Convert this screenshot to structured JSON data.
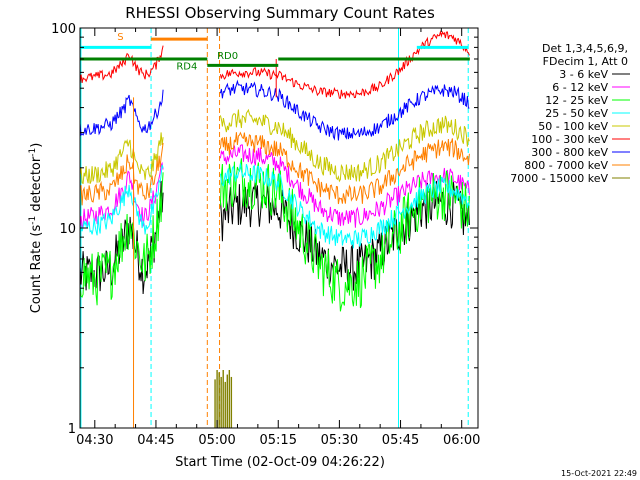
{
  "chart_data": {
    "type": "line",
    "title": "RHESSI Observing Summary Count Rates",
    "xlabel": "Start Time (02-Oct-09 04:26:22)",
    "ylabel_main": "Count Rate (s",
    "ylabel_sup1": "-1",
    "ylabel_mid": " detector",
    "ylabel_sup2": "-1",
    "ylabel_end": ")",
    "xlim": [
      26.37,
      124
    ],
    "ylim": [
      1,
      100
    ],
    "yscale": "log",
    "grid": false,
    "legend_placement": "right",
    "x_ticks": [
      {
        "x": 30,
        "label": "04:30"
      },
      {
        "x": 45,
        "label": "04:45"
      },
      {
        "x": 60,
        "label": "05:00"
      },
      {
        "x": 75,
        "label": "05:15"
      },
      {
        "x": 90,
        "label": "05:30"
      },
      {
        "x": 105,
        "label": "05:45"
      },
      {
        "x": 120,
        "label": "06:00"
      }
    ],
    "y_ticks": [
      {
        "y": 1,
        "label": "1"
      },
      {
        "y": 10,
        "label": "10"
      },
      {
        "y": 100,
        "label": "100"
      }
    ],
    "legend_header": [
      "Det 1,3,4,5,6,9,",
      "FDecim 1, Att 0"
    ],
    "series": [
      {
        "name": "3 - 6 keV",
        "color": "#000000",
        "seg1": [
          [
            26.4,
            5.8
          ],
          [
            30,
            5.9
          ],
          [
            34,
            6.2
          ],
          [
            37,
            8.5
          ],
          [
            38.5,
            10.5
          ],
          [
            40,
            8
          ],
          [
            42,
            6
          ],
          [
            43.5,
            7
          ],
          [
            45,
            9.5
          ],
          [
            46.8,
            15
          ]
        ],
        "seg2": [
          [
            60.8,
            11
          ],
          [
            65,
            13
          ],
          [
            70,
            13.4
          ],
          [
            75,
            12.6
          ],
          [
            80,
            9.5
          ],
          [
            85,
            7.2
          ],
          [
            90,
            6.3
          ],
          [
            95,
            6.3
          ],
          [
            100,
            7.5
          ],
          [
            105,
            10
          ],
          [
            110,
            12.5
          ],
          [
            115,
            13.5
          ],
          [
            118,
            13
          ],
          [
            120,
            11.5
          ],
          [
            122,
            10.5
          ]
        ],
        "noise": 0.12
      },
      {
        "name": "6 - 12 keV",
        "color": "#ff00ff",
        "seg1": [
          [
            26.4,
            11
          ],
          [
            30,
            11.5
          ],
          [
            34,
            12.5
          ],
          [
            37,
            15.5
          ],
          [
            38.5,
            18.5
          ],
          [
            40,
            14
          ],
          [
            42,
            11
          ],
          [
            43.5,
            12.5
          ],
          [
            45,
            15
          ],
          [
            46.8,
            22
          ]
        ],
        "seg2": [
          [
            60.8,
            22
          ],
          [
            65,
            23.5
          ],
          [
            70,
            23
          ],
          [
            75,
            21
          ],
          [
            80,
            16
          ],
          [
            85,
            12.5
          ],
          [
            90,
            11.2
          ],
          [
            95,
            11.2
          ],
          [
            100,
            12.5
          ],
          [
            105,
            14.8
          ],
          [
            110,
            17
          ],
          [
            115,
            18.2
          ],
          [
            118,
            17.8
          ],
          [
            120,
            16.5
          ],
          [
            122,
            15
          ]
        ],
        "noise": 0.05
      },
      {
        "name": "12 - 25 keV",
        "color": "#00ff00",
        "seg1": [
          [
            26.4,
            6
          ],
          [
            30,
            5.5
          ],
          [
            34,
            6
          ],
          [
            37,
            9
          ],
          [
            38.5,
            11
          ],
          [
            40,
            8.5
          ],
          [
            42,
            6.5
          ],
          [
            43.5,
            7.5
          ],
          [
            45,
            10
          ],
          [
            46.8,
            16
          ]
        ],
        "seg2": [
          [
            60.8,
            16
          ],
          [
            65,
            17.5
          ],
          [
            70,
            17
          ],
          [
            75,
            15
          ],
          [
            80,
            10
          ],
          [
            85,
            6.5
          ],
          [
            90,
            5.2
          ],
          [
            95,
            5.4
          ],
          [
            100,
            7
          ],
          [
            105,
            10
          ],
          [
            110,
            13.5
          ],
          [
            115,
            15
          ],
          [
            118,
            14.5
          ],
          [
            120,
            13
          ],
          [
            122,
            12
          ]
        ],
        "noise": 0.14
      },
      {
        "name": "25 - 50 keV",
        "color": "#00ffff",
        "seg1": [
          [
            26.4,
            10
          ],
          [
            30,
            10.2
          ],
          [
            34,
            11
          ],
          [
            37,
            14
          ],
          [
            38.5,
            16.5
          ],
          [
            40,
            12.5
          ],
          [
            42,
            10
          ],
          [
            43.5,
            11
          ],
          [
            45,
            13.5
          ],
          [
            46.8,
            20
          ]
        ],
        "seg2": [
          [
            60.8,
            17.5
          ],
          [
            65,
            19
          ],
          [
            70,
            18.5
          ],
          [
            75,
            17
          ],
          [
            80,
            12.5
          ],
          [
            85,
            9.8
          ],
          [
            90,
            8.8
          ],
          [
            95,
            8.8
          ],
          [
            100,
            10
          ],
          [
            105,
            12
          ],
          [
            110,
            14.5
          ],
          [
            115,
            16
          ],
          [
            118,
            15.5
          ],
          [
            120,
            14.5
          ],
          [
            122,
            13.5
          ]
        ],
        "noise": 0.05
      },
      {
        "name": "50 - 100 keV",
        "color": "#c8c800",
        "seg1": [
          [
            26.4,
            18
          ],
          [
            30,
            18.5
          ],
          [
            34,
            19.5
          ],
          [
            37,
            24
          ],
          [
            38.5,
            27
          ],
          [
            40,
            21
          ],
          [
            42,
            18
          ],
          [
            43.5,
            19
          ],
          [
            45,
            22
          ],
          [
            46.8,
            30
          ]
        ],
        "seg2": [
          [
            60.8,
            33
          ],
          [
            65,
            35
          ],
          [
            70,
            34.5
          ],
          [
            75,
            32
          ],
          [
            80,
            26
          ],
          [
            85,
            21
          ],
          [
            90,
            19
          ],
          [
            95,
            19
          ],
          [
            100,
            21
          ],
          [
            105,
            25
          ],
          [
            110,
            30
          ],
          [
            115,
            33
          ],
          [
            118,
            32
          ],
          [
            120,
            30
          ],
          [
            122,
            28
          ]
        ],
        "noise": 0.05
      },
      {
        "name": "100 - 300 keV",
        "color": "#ff0000",
        "seg1": [
          [
            26.4,
            56
          ],
          [
            30,
            57
          ],
          [
            34,
            59
          ],
          [
            37,
            67
          ],
          [
            38.5,
            75
          ],
          [
            40,
            64
          ],
          [
            42,
            58
          ],
          [
            43.5,
            60
          ],
          [
            45,
            65
          ],
          [
            46.8,
            80
          ]
        ],
        "seg2": [
          [
            60.8,
            58
          ],
          [
            65,
            60
          ],
          [
            70,
            60
          ],
          [
            75,
            58
          ],
          [
            80,
            52
          ],
          [
            85,
            48
          ],
          [
            90,
            47
          ],
          [
            95,
            47
          ],
          [
            100,
            51
          ],
          [
            105,
            62
          ],
          [
            110,
            80
          ],
          [
            115,
            93
          ],
          [
            118,
            90
          ],
          [
            120,
            83
          ],
          [
            122,
            76
          ]
        ],
        "noise": 0.025
      },
      {
        "name": "300 - 800 keV",
        "color": "#0000ff",
        "seg1": [
          [
            26.4,
            31
          ],
          [
            30,
            31.5
          ],
          [
            34,
            33
          ],
          [
            37,
            39
          ],
          [
            38.5,
            44
          ],
          [
            40,
            36
          ],
          [
            42,
            31
          ],
          [
            43.5,
            33
          ],
          [
            45,
            37
          ],
          [
            46.8,
            46
          ]
        ],
        "seg2": [
          [
            60.8,
            48
          ],
          [
            65,
            50
          ],
          [
            70,
            49
          ],
          [
            75,
            46
          ],
          [
            80,
            38
          ],
          [
            85,
            32
          ],
          [
            90,
            29.5
          ],
          [
            95,
            29.5
          ],
          [
            100,
            32
          ],
          [
            105,
            38
          ],
          [
            110,
            45
          ],
          [
            115,
            49
          ],
          [
            118,
            48
          ],
          [
            120,
            45
          ],
          [
            122,
            42
          ]
        ],
        "noise": 0.035
      },
      {
        "name": "800 - 7000 keV",
        "color": "#ff8000",
        "seg1": [
          [
            26.4,
            14.5
          ],
          [
            30,
            14.8
          ],
          [
            34,
            15.5
          ],
          [
            37,
            19
          ],
          [
            38.5,
            22
          ],
          [
            40,
            17
          ],
          [
            42,
            14.5
          ],
          [
            43.5,
            15.5
          ],
          [
            45,
            18.5
          ],
          [
            46.8,
            25
          ]
        ],
        "seg2": [
          [
            60.8,
            25
          ],
          [
            65,
            27
          ],
          [
            70,
            26.5
          ],
          [
            75,
            24.5
          ],
          [
            80,
            19.5
          ],
          [
            85,
            16
          ],
          [
            90,
            14.5
          ],
          [
            95,
            14.5
          ],
          [
            100,
            16
          ],
          [
            105,
            19.5
          ],
          [
            110,
            23
          ],
          [
            115,
            25.5
          ],
          [
            118,
            25
          ],
          [
            120,
            23.5
          ],
          [
            122,
            22
          ]
        ],
        "noise": 0.05
      },
      {
        "name": "7000 - 15000 keV",
        "color": "#808000",
        "seg1": [],
        "seg2": [],
        "noise": 0
      }
    ],
    "att_bars": {
      "color": "#808000",
      "x": [
        59.5,
        60,
        60.5,
        61,
        61.5,
        62,
        62.5,
        63,
        63.5
      ],
      "y_top": [
        1.75,
        1.95,
        1.9,
        1.8,
        1.95,
        1.7,
        1.85,
        1.95,
        1.8
      ]
    },
    "spikes": [
      {
        "x": 39.5,
        "y_from": 1,
        "y_to": 45,
        "color": "#ff8000"
      },
      {
        "x": 74.5,
        "y_from": 45,
        "y_to": 70,
        "color": "#ff0000"
      }
    ],
    "vlines": [
      {
        "x": 26.6,
        "color": "#00ffff",
        "dashed": false
      },
      {
        "x": 43.8,
        "color": "#00ffff",
        "dashed": true
      },
      {
        "x": 57.6,
        "color": "#ff8000",
        "dashed": true
      },
      {
        "x": 60.6,
        "color": "#ff8000",
        "dashed": true
      },
      {
        "x": 104.5,
        "color": "#00ffff",
        "dashed": false
      },
      {
        "x": 121.6,
        "color": "#00ffff",
        "dashed": true
      }
    ],
    "hbars": [
      {
        "x0": 26.6,
        "x1": 43.8,
        "y": 80,
        "color": "#00ffff"
      },
      {
        "x0": 43.8,
        "x1": 57.6,
        "y": 88,
        "color": "#ff8000"
      },
      {
        "x0": 109,
        "x1": 121.6,
        "y": 80,
        "color": "#00ffff"
      },
      {
        "x0": 26.4,
        "x1": 57.6,
        "y": 70,
        "color": "#008000"
      },
      {
        "x0": 57.6,
        "x1": 75,
        "y": 65,
        "color": "#008000"
      },
      {
        "x0": 75,
        "x1": 122,
        "y": 70,
        "color": "#008000"
      }
    ],
    "annotations": [
      {
        "text": "S",
        "x": 35.5,
        "y": 87,
        "color": "#ff8000"
      },
      {
        "text": "RD0",
        "x": 60,
        "y": 70,
        "color": "#008000"
      },
      {
        "text": "RD4",
        "x": 50,
        "y": 62,
        "color": "#008000"
      }
    ],
    "footer": "15-Oct-2021 22:49"
  }
}
